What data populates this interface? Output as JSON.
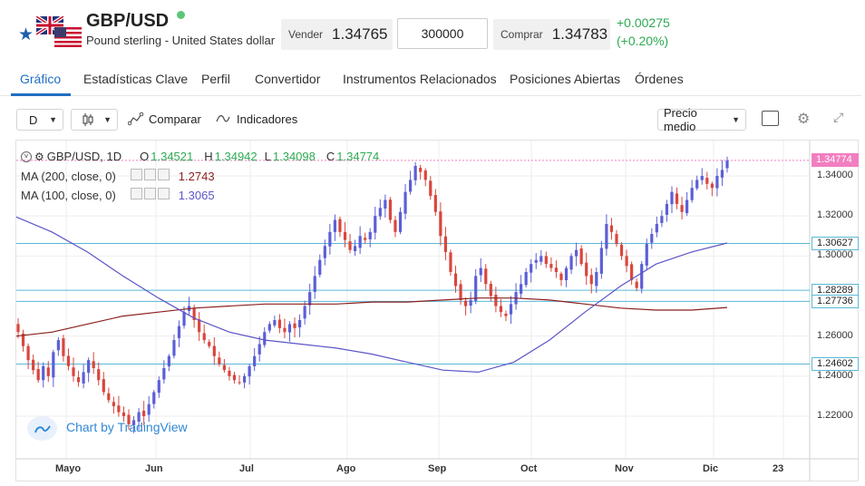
{
  "header": {
    "symbol": "GBP/USD",
    "name": "Pound sterling - United States dollar",
    "sell_label": "Vender",
    "sell_price": "1.34765",
    "quantity": "300000",
    "buy_label": "Comprar",
    "buy_price": "1.34783",
    "change": "+0.00275",
    "change_pct": "(+0.20%)"
  },
  "tabs": [
    "Gráfico",
    "Estadísticas Clave",
    "Perfil",
    "Convertidor",
    "Instrumentos Relacionados",
    "Posiciones Abiertas",
    "Órdenes"
  ],
  "toolbar": {
    "interval": "D",
    "compare": "Comparar",
    "indicators": "Indicadores",
    "price_type": "Precio medio"
  },
  "legend": {
    "series": "GBP/USD, 1D",
    "o_label": "O",
    "o": "1.34521",
    "h_label": "H",
    "h": "1.34942",
    "l_label": "L",
    "l": "1.34098",
    "c_label": "C",
    "c": "1.34774",
    "ma200": "MA (200, close, 0)",
    "ma200_val": "1.2743",
    "ma100": "MA (100, close, 0)",
    "ma100_val": "1.3065"
  },
  "watermark": "Chart by TradingView",
  "colors": {
    "up": "#5b5fd6",
    "down": "#d9463d",
    "accent": "#1f6fc2",
    "positive": "#2eaa52",
    "ma100": "#5b55c8",
    "ma200": "#8b1f1f",
    "hline": "#5bb8d6",
    "price_tag": "#f27ec0"
  },
  "chart_data": {
    "type": "candlestick",
    "y_ticks": [
      "1.34000",
      "1.32000",
      "1.30000",
      "1.26000",
      "1.24000",
      "1.22000"
    ],
    "x_ticks": [
      "Mayo",
      "Jun",
      "Jul",
      "Ago",
      "Sep",
      "Oct",
      "Nov",
      "Dic",
      "23"
    ],
    "ylim": [
      1.205,
      1.352
    ],
    "last_price": "1.34774",
    "h_levels": [
      {
        "value": 1.30627,
        "label": "1.30627"
      },
      {
        "value": 1.28289,
        "label": "1.28289"
      },
      {
        "value": 1.27736,
        "label": "1.27736"
      },
      {
        "value": 1.24602,
        "label": "1.24602"
      }
    ],
    "closes": [
      1.262,
      1.255,
      1.248,
      1.243,
      1.238,
      1.245,
      1.24,
      1.252,
      1.258,
      1.25,
      1.245,
      1.24,
      1.237,
      1.242,
      1.248,
      1.244,
      1.238,
      1.232,
      1.228,
      1.225,
      1.222,
      1.22,
      1.216,
      1.218,
      1.222,
      1.22,
      1.226,
      1.232,
      1.238,
      1.244,
      1.25,
      1.258,
      1.265,
      1.272,
      1.275,
      1.268,
      1.262,
      1.258,
      1.255,
      1.25,
      1.246,
      1.243,
      1.24,
      1.238,
      1.237,
      1.24,
      1.245,
      1.25,
      1.256,
      1.262,
      1.266,
      1.268,
      1.264,
      1.262,
      1.266,
      1.264,
      1.268,
      1.275,
      1.282,
      1.29,
      1.298,
      1.305,
      1.312,
      1.318,
      1.312,
      1.308,
      1.303,
      1.305,
      1.31,
      1.308,
      1.312,
      1.32,
      1.324,
      1.328,
      1.318,
      1.312,
      1.322,
      1.332,
      1.338,
      1.345,
      1.342,
      1.338,
      1.33,
      1.322,
      1.31,
      1.302,
      1.292,
      1.285,
      1.278,
      1.275,
      1.278,
      1.29,
      1.294,
      1.286,
      1.28,
      1.275,
      1.272,
      1.27,
      1.276,
      1.282,
      1.286,
      1.292,
      1.296,
      1.298,
      1.3,
      1.296,
      1.294,
      1.292,
      1.288,
      1.294,
      1.3,
      1.303,
      1.296,
      1.29,
      1.286,
      1.292,
      1.304,
      1.316,
      1.312,
      1.306,
      1.3,
      1.295,
      1.288,
      1.284,
      1.296,
      1.306,
      1.311,
      1.316,
      1.32,
      1.326,
      1.332,
      1.326,
      1.322,
      1.328,
      1.334,
      1.338,
      1.34,
      1.336,
      1.334,
      1.34,
      1.343,
      1.3477
    ],
    "ma100": [
      1.3195,
      1.312,
      1.302,
      1.29,
      1.279,
      1.269,
      1.262,
      1.258,
      1.256,
      1.254,
      1.251,
      1.247,
      1.243,
      1.242,
      1.247,
      1.258,
      1.272,
      1.285,
      1.296,
      1.302,
      1.3065
    ],
    "ma200": [
      1.26,
      1.262,
      1.266,
      1.27,
      1.272,
      1.274,
      1.275,
      1.276,
      1.276,
      1.276,
      1.277,
      1.277,
      1.278,
      1.279,
      1.279,
      1.278,
      1.276,
      1.274,
      1.273,
      1.273,
      1.2743
    ]
  }
}
